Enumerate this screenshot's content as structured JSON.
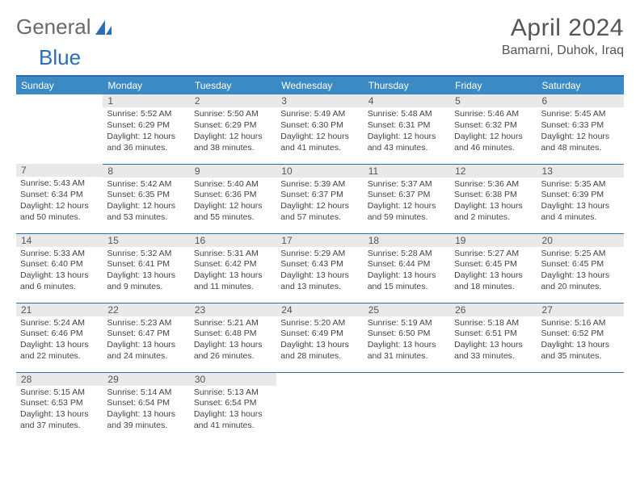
{
  "brand": {
    "part1": "General",
    "part2": "Blue"
  },
  "title": "April 2024",
  "location": "Bamarni, Duhok, Iraq",
  "colors": {
    "header_bg": "#3b8ac4",
    "header_text": "#ffffff",
    "rule": "#2a6fb5",
    "daynum_bg": "#e9e9e9",
    "body_text": "#444444",
    "logo_gray": "#6a6a6a",
    "logo_blue": "#2a6fb5"
  },
  "typography": {
    "title_fontsize": 30,
    "location_fontsize": 16,
    "dayhead_fontsize": 12,
    "daynum_fontsize": 12,
    "body_fontsize": 10.5
  },
  "week_days": [
    "Sunday",
    "Monday",
    "Tuesday",
    "Wednesday",
    "Thursday",
    "Friday",
    "Saturday"
  ],
  "weeks": [
    [
      {
        "n": "",
        "sr": "",
        "ss": "",
        "dl1": "",
        "dl2": ""
      },
      {
        "n": "1",
        "sr": "Sunrise: 5:52 AM",
        "ss": "Sunset: 6:29 PM",
        "dl1": "Daylight: 12 hours",
        "dl2": "and 36 minutes."
      },
      {
        "n": "2",
        "sr": "Sunrise: 5:50 AM",
        "ss": "Sunset: 6:29 PM",
        "dl1": "Daylight: 12 hours",
        "dl2": "and 38 minutes."
      },
      {
        "n": "3",
        "sr": "Sunrise: 5:49 AM",
        "ss": "Sunset: 6:30 PM",
        "dl1": "Daylight: 12 hours",
        "dl2": "and 41 minutes."
      },
      {
        "n": "4",
        "sr": "Sunrise: 5:48 AM",
        "ss": "Sunset: 6:31 PM",
        "dl1": "Daylight: 12 hours",
        "dl2": "and 43 minutes."
      },
      {
        "n": "5",
        "sr": "Sunrise: 5:46 AM",
        "ss": "Sunset: 6:32 PM",
        "dl1": "Daylight: 12 hours",
        "dl2": "and 46 minutes."
      },
      {
        "n": "6",
        "sr": "Sunrise: 5:45 AM",
        "ss": "Sunset: 6:33 PM",
        "dl1": "Daylight: 12 hours",
        "dl2": "and 48 minutes."
      }
    ],
    [
      {
        "n": "7",
        "sr": "Sunrise: 5:43 AM",
        "ss": "Sunset: 6:34 PM",
        "dl1": "Daylight: 12 hours",
        "dl2": "and 50 minutes."
      },
      {
        "n": "8",
        "sr": "Sunrise: 5:42 AM",
        "ss": "Sunset: 6:35 PM",
        "dl1": "Daylight: 12 hours",
        "dl2": "and 53 minutes."
      },
      {
        "n": "9",
        "sr": "Sunrise: 5:40 AM",
        "ss": "Sunset: 6:36 PM",
        "dl1": "Daylight: 12 hours",
        "dl2": "and 55 minutes."
      },
      {
        "n": "10",
        "sr": "Sunrise: 5:39 AM",
        "ss": "Sunset: 6:37 PM",
        "dl1": "Daylight: 12 hours",
        "dl2": "and 57 minutes."
      },
      {
        "n": "11",
        "sr": "Sunrise: 5:37 AM",
        "ss": "Sunset: 6:37 PM",
        "dl1": "Daylight: 12 hours",
        "dl2": "and 59 minutes."
      },
      {
        "n": "12",
        "sr": "Sunrise: 5:36 AM",
        "ss": "Sunset: 6:38 PM",
        "dl1": "Daylight: 13 hours",
        "dl2": "and 2 minutes."
      },
      {
        "n": "13",
        "sr": "Sunrise: 5:35 AM",
        "ss": "Sunset: 6:39 PM",
        "dl1": "Daylight: 13 hours",
        "dl2": "and 4 minutes."
      }
    ],
    [
      {
        "n": "14",
        "sr": "Sunrise: 5:33 AM",
        "ss": "Sunset: 6:40 PM",
        "dl1": "Daylight: 13 hours",
        "dl2": "and 6 minutes."
      },
      {
        "n": "15",
        "sr": "Sunrise: 5:32 AM",
        "ss": "Sunset: 6:41 PM",
        "dl1": "Daylight: 13 hours",
        "dl2": "and 9 minutes."
      },
      {
        "n": "16",
        "sr": "Sunrise: 5:31 AM",
        "ss": "Sunset: 6:42 PM",
        "dl1": "Daylight: 13 hours",
        "dl2": "and 11 minutes."
      },
      {
        "n": "17",
        "sr": "Sunrise: 5:29 AM",
        "ss": "Sunset: 6:43 PM",
        "dl1": "Daylight: 13 hours",
        "dl2": "and 13 minutes."
      },
      {
        "n": "18",
        "sr": "Sunrise: 5:28 AM",
        "ss": "Sunset: 6:44 PM",
        "dl1": "Daylight: 13 hours",
        "dl2": "and 15 minutes."
      },
      {
        "n": "19",
        "sr": "Sunrise: 5:27 AM",
        "ss": "Sunset: 6:45 PM",
        "dl1": "Daylight: 13 hours",
        "dl2": "and 18 minutes."
      },
      {
        "n": "20",
        "sr": "Sunrise: 5:25 AM",
        "ss": "Sunset: 6:45 PM",
        "dl1": "Daylight: 13 hours",
        "dl2": "and 20 minutes."
      }
    ],
    [
      {
        "n": "21",
        "sr": "Sunrise: 5:24 AM",
        "ss": "Sunset: 6:46 PM",
        "dl1": "Daylight: 13 hours",
        "dl2": "and 22 minutes."
      },
      {
        "n": "22",
        "sr": "Sunrise: 5:23 AM",
        "ss": "Sunset: 6:47 PM",
        "dl1": "Daylight: 13 hours",
        "dl2": "and 24 minutes."
      },
      {
        "n": "23",
        "sr": "Sunrise: 5:21 AM",
        "ss": "Sunset: 6:48 PM",
        "dl1": "Daylight: 13 hours",
        "dl2": "and 26 minutes."
      },
      {
        "n": "24",
        "sr": "Sunrise: 5:20 AM",
        "ss": "Sunset: 6:49 PM",
        "dl1": "Daylight: 13 hours",
        "dl2": "and 28 minutes."
      },
      {
        "n": "25",
        "sr": "Sunrise: 5:19 AM",
        "ss": "Sunset: 6:50 PM",
        "dl1": "Daylight: 13 hours",
        "dl2": "and 31 minutes."
      },
      {
        "n": "26",
        "sr": "Sunrise: 5:18 AM",
        "ss": "Sunset: 6:51 PM",
        "dl1": "Daylight: 13 hours",
        "dl2": "and 33 minutes."
      },
      {
        "n": "27",
        "sr": "Sunrise: 5:16 AM",
        "ss": "Sunset: 6:52 PM",
        "dl1": "Daylight: 13 hours",
        "dl2": "and 35 minutes."
      }
    ],
    [
      {
        "n": "28",
        "sr": "Sunrise: 5:15 AM",
        "ss": "Sunset: 6:53 PM",
        "dl1": "Daylight: 13 hours",
        "dl2": "and 37 minutes."
      },
      {
        "n": "29",
        "sr": "Sunrise: 5:14 AM",
        "ss": "Sunset: 6:54 PM",
        "dl1": "Daylight: 13 hours",
        "dl2": "and 39 minutes."
      },
      {
        "n": "30",
        "sr": "Sunrise: 5:13 AM",
        "ss": "Sunset: 6:54 PM",
        "dl1": "Daylight: 13 hours",
        "dl2": "and 41 minutes."
      },
      {
        "n": "",
        "sr": "",
        "ss": "",
        "dl1": "",
        "dl2": ""
      },
      {
        "n": "",
        "sr": "",
        "ss": "",
        "dl1": "",
        "dl2": ""
      },
      {
        "n": "",
        "sr": "",
        "ss": "",
        "dl1": "",
        "dl2": ""
      },
      {
        "n": "",
        "sr": "",
        "ss": "",
        "dl1": "",
        "dl2": ""
      }
    ]
  ]
}
